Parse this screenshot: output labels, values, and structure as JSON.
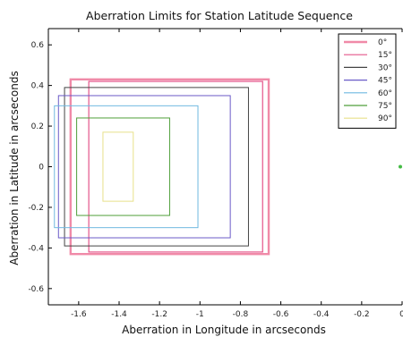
{
  "chart_data": {
    "type": "line",
    "title": "Aberration Limits for Station Latitude Sequence",
    "xlabel": "Aberration in Longitude in arcseconds",
    "ylabel": "Aberration in Latitude in arcseconds",
    "xlim": [
      -1.75,
      0.0
    ],
    "ylim": [
      -0.68,
      0.68
    ],
    "x_ticks": [
      -1.6,
      -1.4,
      -1.2,
      -1,
      -0.8,
      -0.6,
      -0.4,
      -0.2,
      0
    ],
    "x_tick_labels": [
      "-1.6",
      "-1.4",
      "-1.2",
      "-1",
      "-0.8",
      "-0.6",
      "-0.4",
      "-0.2",
      "0"
    ],
    "y_ticks": [
      0.6,
      0.4,
      0.2,
      0,
      -0.2,
      -0.4,
      -0.6
    ],
    "y_tick_labels": [
      "0.6",
      "0.4",
      "0.2",
      "0",
      "-0.2",
      "-0.4",
      "-0.6"
    ],
    "grid": false,
    "legend_position": "top-right",
    "series": [
      {
        "name": "0°",
        "color": "#f08aa8",
        "lw": 2.4,
        "x_range": [
          -1.64,
          -0.66
        ],
        "y_range": [
          -0.43,
          0.43
        ]
      },
      {
        "name": "15°",
        "color": "#e4558a",
        "lw": 1.2,
        "x_range": [
          -1.55,
          -0.69
        ],
        "y_range": [
          -0.42,
          0.42
        ]
      },
      {
        "name": "30°",
        "color": "#444444",
        "lw": 1.0,
        "x_range": [
          -1.67,
          -0.76
        ],
        "y_range": [
          -0.39,
          0.39
        ]
      },
      {
        "name": "45°",
        "color": "#6a5ac8",
        "lw": 1.0,
        "x_range": [
          -1.7,
          -0.85
        ],
        "y_range": [
          -0.35,
          0.35
        ]
      },
      {
        "name": "60°",
        "color": "#6fb8e0",
        "lw": 1.0,
        "x_range": [
          -1.72,
          -1.01
        ],
        "y_range": [
          -0.3,
          0.3
        ]
      },
      {
        "name": "75°",
        "color": "#4f9f3a",
        "lw": 1.0,
        "x_range": [
          -1.61,
          -1.15
        ],
        "y_range": [
          -0.24,
          0.24
        ]
      },
      {
        "name": "90°",
        "color": "#e8e08a",
        "lw": 1.0,
        "x_range": [
          -1.48,
          -1.33
        ],
        "y_range": [
          -0.17,
          0.17
        ]
      }
    ],
    "extra_points": [
      {
        "x": 0.0,
        "y": 0.0,
        "color": "#44bb44"
      }
    ]
  }
}
